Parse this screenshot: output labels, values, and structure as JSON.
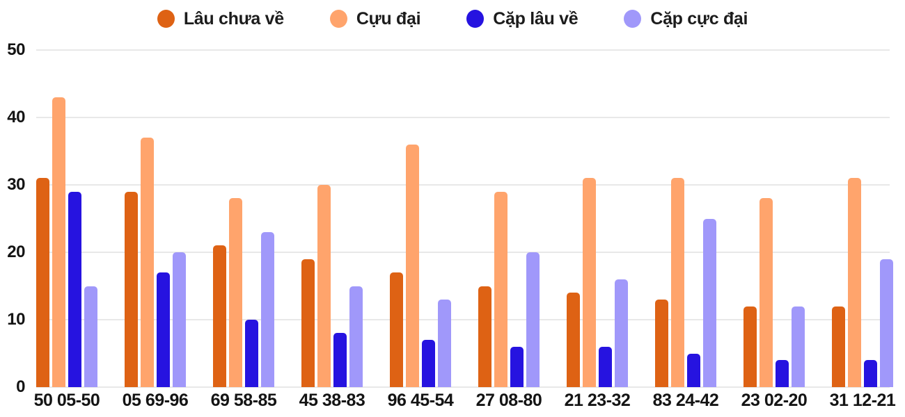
{
  "chart_data": {
    "type": "bar",
    "title": "",
    "xlabel": "",
    "ylabel": "",
    "categories": [
      "50 05-50",
      "05 69-96",
      "69 58-85",
      "45 38-83",
      "96 45-54",
      "27 08-80",
      "21 23-32",
      "83 24-42",
      "23 02-20",
      "31 12-21"
    ],
    "series": [
      {
        "name": "Lâu chưa về",
        "color": "#DE6214",
        "values": [
          31,
          29,
          21,
          19,
          17,
          15,
          14,
          13,
          12,
          12
        ]
      },
      {
        "name": "Cựu đại",
        "color": "#FFA46C",
        "values": [
          43,
          37,
          28,
          30,
          36,
          29,
          31,
          31,
          28,
          31
        ]
      },
      {
        "name": "Cặp lâu về",
        "color": "#2613E0",
        "values": [
          29,
          17,
          10,
          8,
          7,
          6,
          6,
          5,
          4,
          4
        ]
      },
      {
        "name": "Cặp cực đại",
        "color": "#A098FA",
        "values": [
          15,
          20,
          23,
          15,
          13,
          20,
          16,
          25,
          12,
          19
        ]
      }
    ],
    "ylim": [
      0,
      50
    ],
    "yticks": [
      0,
      10,
      20,
      30,
      40,
      50
    ],
    "grid": true,
    "legend_position": "top",
    "background_color": "#ffffff",
    "gridline_color": "#e8e8e8",
    "text_color": "#141414"
  }
}
